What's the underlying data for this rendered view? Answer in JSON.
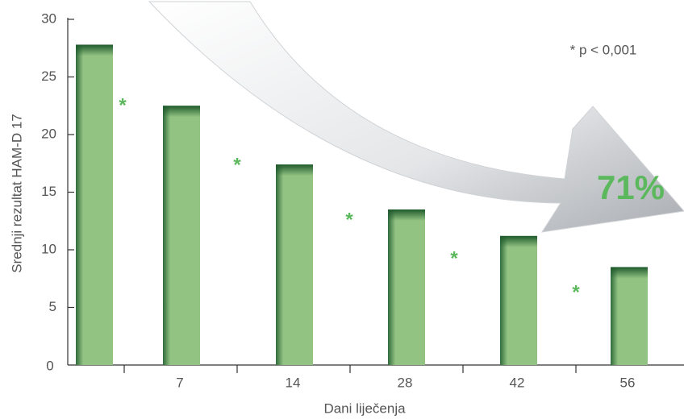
{
  "chart_data": {
    "type": "bar",
    "categories": [
      null,
      "7",
      "14",
      "28",
      "42",
      "56"
    ],
    "values": [
      27.8,
      22.5,
      17.4,
      13.5,
      11.2,
      8.5
    ],
    "color": "#93c383",
    "ylim": [
      0,
      30
    ],
    "yticks": [
      0,
      5,
      10,
      15,
      20,
      25,
      30
    ],
    "ylabel": "Srednji rezultat HAM-D 17",
    "xlabel": "Dani liječenja",
    "significance_markers": [
      "*",
      "*",
      "*",
      "*",
      "*"
    ],
    "marker_color": "#5cb85c",
    "note": "* p < 0,001",
    "reduction_label": "71%"
  }
}
